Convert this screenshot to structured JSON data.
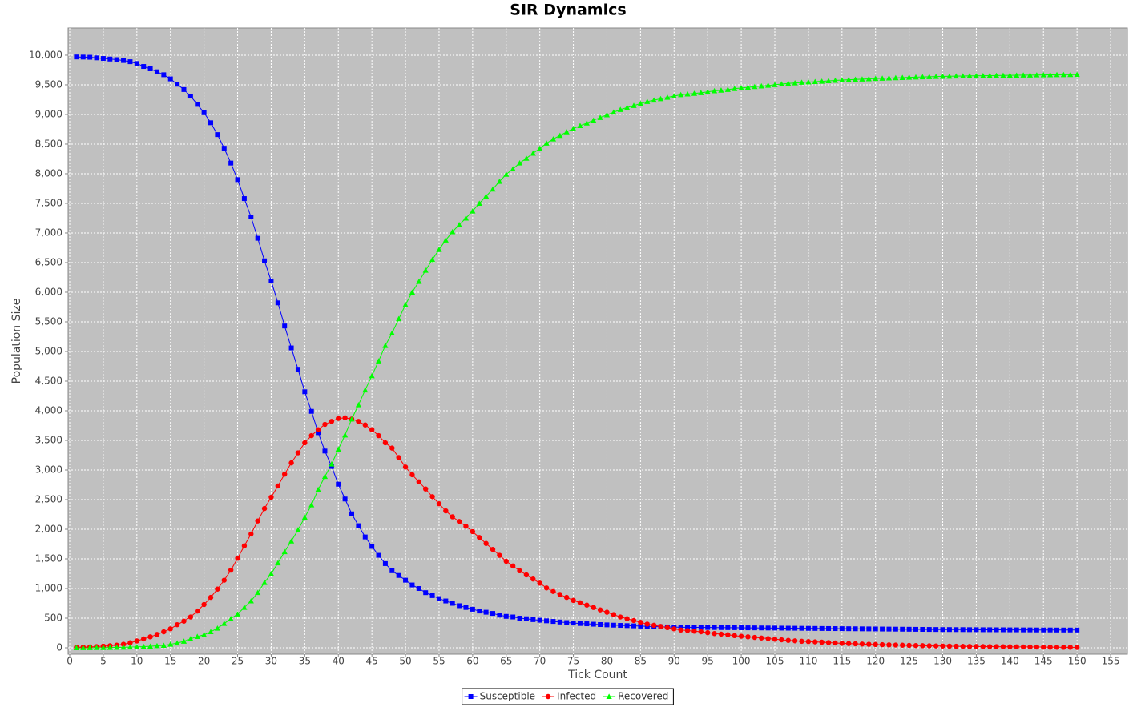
{
  "chart_data": {
    "type": "line",
    "title": "SIR Dynamics",
    "x_label": "Tick Count",
    "y_label": "Population Size",
    "x": [
      1,
      2,
      3,
      4,
      5,
      6,
      7,
      8,
      9,
      10,
      11,
      12,
      13,
      14,
      15,
      16,
      17,
      18,
      19,
      20,
      21,
      22,
      23,
      24,
      25,
      26,
      27,
      28,
      29,
      30,
      31,
      32,
      33,
      34,
      35,
      36,
      37,
      38,
      39,
      40,
      41,
      42,
      43,
      44,
      45,
      46,
      47,
      48,
      49,
      50,
      51,
      52,
      53,
      54,
      55,
      56,
      57,
      58,
      59,
      60,
      61,
      62,
      63,
      64,
      65,
      66,
      67,
      68,
      69,
      70,
      71,
      72,
      73,
      74,
      75,
      76,
      77,
      78,
      79,
      80,
      81,
      82,
      83,
      84,
      85,
      86,
      87,
      88,
      89,
      90,
      91,
      92,
      93,
      94,
      95,
      96,
      97,
      98,
      99,
      100,
      101,
      102,
      103,
      104,
      105,
      106,
      107,
      108,
      109,
      110,
      111,
      112,
      113,
      114,
      115,
      116,
      117,
      118,
      119,
      120,
      121,
      122,
      123,
      124,
      125,
      126,
      127,
      128,
      129,
      130,
      131,
      132,
      133,
      134,
      135,
      136,
      137,
      138,
      139,
      140,
      141,
      142,
      143,
      144,
      145,
      146,
      147,
      148,
      149,
      150
    ],
    "series": [
      {
        "name": "Susceptible",
        "color": "#0000ff",
        "marker": "square",
        "values": [
          9970,
          9968,
          9965,
          9955,
          9945,
          9935,
          9925,
          9910,
          9890,
          9860,
          9810,
          9770,
          9720,
          9670,
          9600,
          9510,
          9420,
          9310,
          9170,
          9030,
          8860,
          8660,
          8430,
          8180,
          7900,
          7580,
          7270,
          6910,
          6530,
          6190,
          5820,
          5430,
          5060,
          4700,
          4320,
          3990,
          3630,
          3320,
          3060,
          2760,
          2510,
          2260,
          2060,
          1870,
          1710,
          1560,
          1420,
          1300,
          1220,
          1140,
          1060,
          1000,
          930,
          880,
          830,
          790,
          750,
          710,
          680,
          650,
          620,
          600,
          580,
          550,
          530,
          520,
          500,
          490,
          475,
          465,
          455,
          445,
          435,
          425,
          418,
          410,
          405,
          398,
          392,
          387,
          382,
          378,
          374,
          370,
          366,
          362,
          358,
          355,
          352,
          349,
          347,
          346,
          345,
          344,
          343,
          342,
          341,
          340,
          339,
          338,
          337,
          336,
          335,
          334,
          333,
          332,
          331,
          330,
          329,
          328,
          327,
          326,
          325,
          324,
          323,
          322,
          321,
          320,
          319,
          318,
          317,
          316,
          315,
          314,
          313,
          312,
          311,
          310,
          309,
          308,
          308,
          307,
          307,
          306,
          306,
          305,
          305,
          304,
          304,
          303,
          303,
          302,
          302,
          301,
          301,
          301,
          300,
          300,
          300,
          300
        ]
      },
      {
        "name": "Infected",
        "color": "#ff0000",
        "marker": "circle",
        "values": [
          10,
          12,
          15,
          20,
          28,
          35,
          45,
          60,
          85,
          115,
          150,
          185,
          225,
          270,
          320,
          390,
          450,
          520,
          620,
          730,
          850,
          990,
          1140,
          1310,
          1510,
          1720,
          1920,
          2140,
          2350,
          2540,
          2730,
          2930,
          3120,
          3290,
          3460,
          3580,
          3680,
          3770,
          3820,
          3870,
          3880,
          3860,
          3820,
          3760,
          3680,
          3580,
          3460,
          3370,
          3210,
          3050,
          2920,
          2800,
          2680,
          2550,
          2430,
          2310,
          2210,
          2130,
          2050,
          1960,
          1860,
          1760,
          1660,
          1560,
          1460,
          1380,
          1300,
          1230,
          1160,
          1090,
          1010,
          950,
          900,
          850,
          800,
          760,
          720,
          680,
          640,
          600,
          560,
          520,
          490,
          460,
          430,
          400,
          380,
          360,
          340,
          320,
          300,
          290,
          280,
          270,
          255,
          240,
          230,
          220,
          205,
          195,
          185,
          175,
          165,
          155,
          145,
          135,
          125,
          118,
          110,
          105,
          100,
          95,
          88,
          82,
          76,
          72,
          68,
          64,
          60,
          56,
          53,
          50,
          47,
          44,
          41,
          38,
          36,
          34,
          32,
          30,
          28,
          26,
          24,
          23,
          22,
          21,
          20,
          19,
          18,
          17,
          16,
          15,
          14,
          13,
          12,
          11,
          10,
          9,
          8,
          7
        ]
      },
      {
        "name": "Recovered",
        "color": "#00ff00",
        "marker": "triangle",
        "values": [
          0,
          1,
          2,
          3,
          4,
          5,
          7,
          9,
          12,
          16,
          20,
          25,
          35,
          40,
          60,
          80,
          110,
          150,
          190,
          220,
          270,
          330,
          410,
          490,
          570,
          680,
          790,
          930,
          1100,
          1250,
          1430,
          1620,
          1800,
          1990,
          2200,
          2410,
          2670,
          2890,
          3100,
          3350,
          3590,
          3860,
          4100,
          4350,
          4590,
          4840,
          5100,
          5310,
          5550,
          5790,
          6000,
          6180,
          6370,
          6550,
          6720,
          6880,
          7020,
          7140,
          7250,
          7370,
          7500,
          7620,
          7740,
          7870,
          7990,
          8080,
          8180,
          8260,
          8345,
          8425,
          8515,
          8585,
          8645,
          8705,
          8762,
          8810,
          8855,
          8902,
          8948,
          8993,
          9038,
          9082,
          9116,
          9150,
          9184,
          9218,
          9242,
          9265,
          9288,
          9311,
          9333,
          9344,
          9355,
          9366,
          9382,
          9398,
          9409,
          9420,
          9436,
          9447,
          9458,
          9469,
          9480,
          9491,
          9502,
          9513,
          9524,
          9532,
          9541,
          9547,
          9553,
          9559,
          9567,
          9574,
          9581,
          9586,
          9591,
          9596,
          9601,
          9606,
          9610,
          9614,
          9618,
          9622,
          9626,
          9630,
          9633,
          9636,
          9639,
          9642,
          9644,
          9647,
          9649,
          9651,
          9652,
          9654,
          9655,
          9657,
          9658,
          9660,
          9661,
          9663,
          9664,
          9666,
          9667,
          9668,
          9670,
          9671,
          9672,
          9673
        ]
      }
    ],
    "xlim": [
      -0.24,
      157.5
    ],
    "xticks": [
      0,
      5,
      10,
      15,
      20,
      25,
      30,
      35,
      40,
      45,
      50,
      55,
      60,
      65,
      70,
      75,
      80,
      85,
      90,
      95,
      100,
      105,
      110,
      115,
      120,
      125,
      130,
      135,
      140,
      145,
      150,
      155
    ],
    "ylim": [
      -108,
      10459
    ],
    "yticks": [
      0,
      500,
      {
        "value": 1000,
        "label": "1,000"
      },
      {
        "value": 1500,
        "label": "1,500"
      },
      {
        "value": 2000,
        "label": "2,000"
      },
      {
        "value": 2500,
        "label": "2,500"
      },
      {
        "value": 3000,
        "label": "3,000"
      },
      {
        "value": 3500,
        "label": "3,500"
      },
      {
        "value": 4000,
        "label": "4,000"
      },
      {
        "value": 4500,
        "label": "4,500"
      },
      {
        "value": 5000,
        "label": "5,000"
      },
      {
        "value": 5500,
        "label": "5,500"
      },
      {
        "value": 6000,
        "label": "6,000"
      },
      {
        "value": 6500,
        "label": "6,500"
      },
      {
        "value": 7000,
        "label": "7,000"
      },
      {
        "value": 7500,
        "label": "7,500"
      },
      {
        "value": 8000,
        "label": "8,000"
      },
      {
        "value": 8500,
        "label": "8,500"
      },
      {
        "value": 9000,
        "label": "9,000"
      },
      {
        "value": 9500,
        "label": "9,500"
      },
      {
        "value": 10000,
        "label": "10,000"
      }
    ],
    "grid": true,
    "legend": "bottom"
  }
}
